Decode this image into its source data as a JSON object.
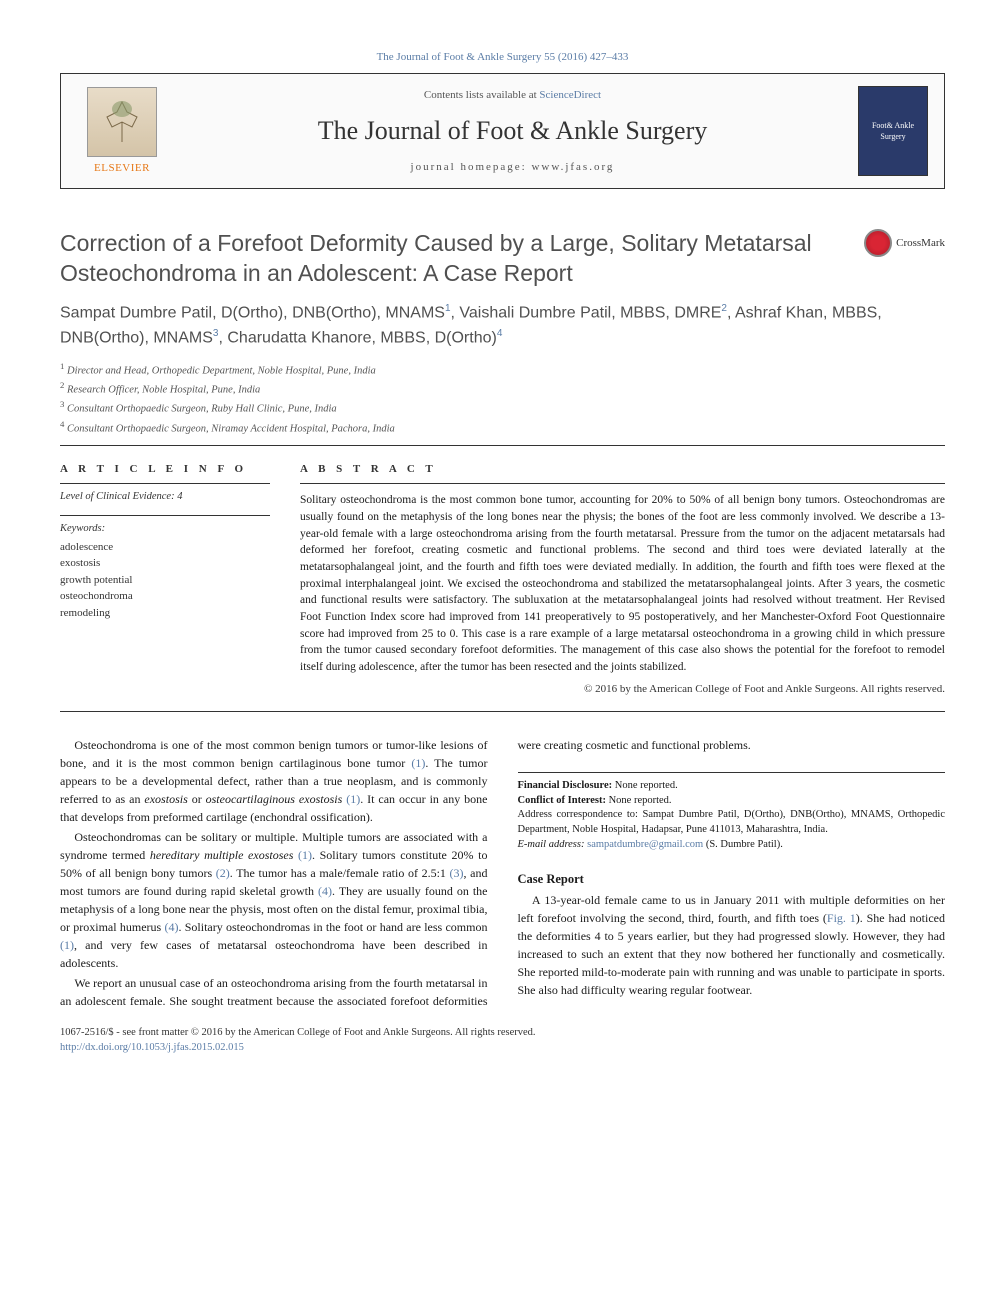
{
  "citation": "The Journal of Foot & Ankle Surgery 55 (2016) 427–433",
  "header": {
    "elsevier": "ELSEVIER",
    "contents_prefix": "Contents lists available at ",
    "contents_link": "ScienceDirect",
    "journal_title": "The Journal of Foot & Ankle Surgery",
    "homepage_label": "journal homepage: www.jfas.org",
    "cover_text": "Foot& Ankle Surgery"
  },
  "title": "Correction of a Forefoot Deformity Caused by a Large, Solitary Metatarsal Osteochondroma in an Adolescent: A Case Report",
  "crossmark": "CrossMark",
  "authors_html": "Sampat Dumbre Patil, D(Ortho), DNB(Ortho), MNAMS<sup>1</sup>, Vaishali Dumbre Patil, MBBS, DMRE<sup>2</sup>, Ashraf Khan, MBBS, DNB(Ortho), MNAMS<sup>3</sup>, Charudatta Khanore, MBBS, D(Ortho)<sup>4</sup>",
  "affiliations": [
    "Director and Head, Orthopedic Department, Noble Hospital, Pune, India",
    "Research Officer, Noble Hospital, Pune, India",
    "Consultant Orthopaedic Surgeon, Ruby Hall Clinic, Pune, India",
    "Consultant Orthopaedic Surgeon, Niramay Accident Hospital, Pachora, India"
  ],
  "article_info": {
    "label": "A R T I C L E  I N F O",
    "evidence": "Level of Clinical Evidence: 4",
    "kw_label": "Keywords:",
    "keywords": [
      "adolescence",
      "exostosis",
      "growth potential",
      "osteochondroma",
      "remodeling"
    ]
  },
  "abstract": {
    "label": "A B S T R A C T",
    "text": "Solitary osteochondroma is the most common bone tumor, accounting for 20% to 50% of all benign bony tumors. Osteochondromas are usually found on the metaphysis of the long bones near the physis; the bones of the foot are less commonly involved. We describe a 13-year-old female with a large osteochondroma arising from the fourth metatarsal. Pressure from the tumor on the adjacent metatarsals had deformed her forefoot, creating cosmetic and functional problems. The second and third toes were deviated laterally at the metatarsophalangeal joint, and the fourth and fifth toes were deviated medially. In addition, the fourth and fifth toes were flexed at the proximal interphalangeal joint. We excised the osteochondroma and stabilized the metatarsophalangeal joints. After 3 years, the cosmetic and functional results were satisfactory. The subluxation at the metatarsophalangeal joints had resolved without treatment. Her Revised Foot Function Index score had improved from 141 preoperatively to 95 postoperatively, and her Manchester-Oxford Foot Questionnaire score had improved from 25 to 0. This case is a rare example of a large metatarsal osteochondroma in a growing child in which pressure from the tumor caused secondary forefoot deformities. The management of this case also shows the potential for the forefoot to remodel itself during adolescence, after the tumor has been resected and the joints stabilized.",
    "copyright": "© 2016 by the American College of Foot and Ankle Surgeons. All rights reserved."
  },
  "body": {
    "p1": "Osteochondroma is one of the most common benign tumors or tumor-like lesions of bone, and it is the most common benign cartilaginous bone tumor ",
    "p1_ref1": "(1)",
    "p1b": ". The tumor appears to be a developmental defect, rather than a true neoplasm, and is commonly referred to as an ",
    "p1_em1": "exostosis",
    "p1c": " or ",
    "p1_em2": "osteocartilaginous exostosis",
    "p1_ref2": " (1)",
    "p1d": ". It can occur in any bone that develops from preformed cartilage (enchondral ossification).",
    "p2a": "Osteochondromas can be solitary or multiple. Multiple tumors are associated with a syndrome termed ",
    "p2_em": "hereditary multiple exostoses",
    "p2_ref1": " (1)",
    "p2b": ". Solitary tumors constitute 20% to 50% of all benign bony tumors ",
    "p2_ref2": "(2)",
    "p2c": ". The tumor has a male/female ratio of 2.5:1 ",
    "p2_ref3": "(3)",
    "p2d": ", and most tumors are found during rapid skeletal growth ",
    "p2_ref4": "(4)",
    "p2e": ". They are usually found on the metaphysis of a long bone near the physis, most often on the distal femur, proximal tibia, or proximal humerus ",
    "p2_ref5": "(4)",
    "p2f": ". Solitary osteochondromas in the foot or hand are less common ",
    "p2_ref6": "(1)",
    "p2g": ", and very few cases of metatarsal osteochondroma have been described in adolescents.",
    "p3": "We report an unusual case of an osteochondroma arising from the fourth metatarsal in an adolescent female. She sought treatment because the associated forefoot deformities were creating cosmetic and functional problems.",
    "case_head": "Case Report",
    "p4a": "A 13-year-old female came to us in January 2011 with multiple deformities on her left forefoot involving the second, third, fourth, and fifth toes (",
    "p4_fig": "Fig. 1",
    "p4b": "). She had noticed the deformities 4 to 5 years earlier, but they had progressed slowly. However, they had increased to such an extent that they now bothered her functionally and cosmetically. She reported mild-to-moderate pain with running and was unable to participate in sports. She also had difficulty wearing regular footwear."
  },
  "footnotes": {
    "fd_label": "Financial Disclosure:",
    "fd_text": " None reported.",
    "coi_label": "Conflict of Interest:",
    "coi_text": " None reported.",
    "corr": "Address correspondence to: Sampat Dumbre Patil, D(Ortho), DNB(Ortho), MNAMS, Orthopedic Department, Noble Hospital, Hadapsar, Pune 411013, Maharashtra, India.",
    "email_label": "E-mail address: ",
    "email": "sampatdumbre@gmail.com",
    "email_suffix": " (S. Dumbre Patil)."
  },
  "footer": {
    "line1": "1067-2516/$ - see front matter © 2016 by the American College of Foot and Ankle Surgeons. All rights reserved.",
    "doi": "http://dx.doi.org/10.1053/j.jfas.2015.02.015"
  }
}
